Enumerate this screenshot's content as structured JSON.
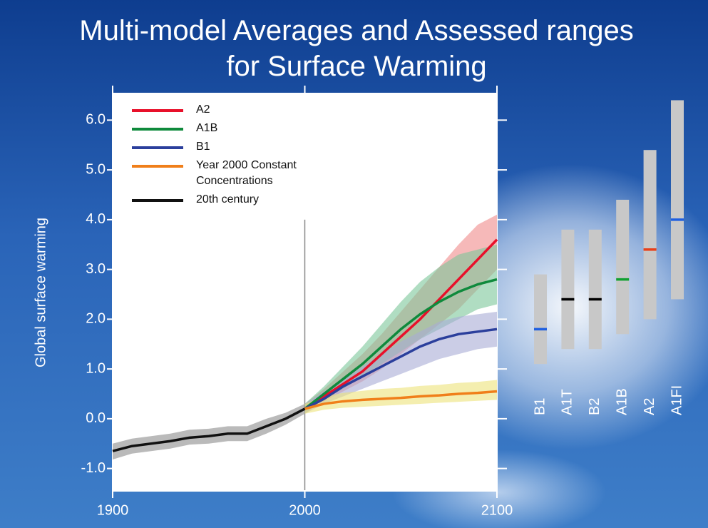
{
  "chart_data": {
    "type": "line",
    "title": "Multi-model Averages and Assessed ranges for Surface Warming",
    "y_label": "Global surface warming",
    "xlim": [
      1900,
      2100
    ],
    "xticks": [
      1900,
      2000,
      2100
    ],
    "ylim": [
      -1.45,
      6.55
    ],
    "yticks": [
      {
        "value": -1,
        "label": "-1.0"
      },
      {
        "value": 0,
        "label": "0.0"
      },
      {
        "value": 1,
        "label": "1.0"
      },
      {
        "value": 2,
        "label": "2.0"
      },
      {
        "value": 3,
        "label": "3.0"
      },
      {
        "value": 4,
        "label": "4.0"
      },
      {
        "value": 5,
        "label": "5.0"
      },
      {
        "value": 6,
        "label": "6.0"
      }
    ],
    "series": [
      {
        "name": "A2",
        "color": "#e8102a",
        "band_color": "#f08a8a",
        "x": [
          2000,
          2010,
          2020,
          2030,
          2040,
          2050,
          2060,
          2070,
          2080,
          2090,
          2100
        ],
        "values": [
          0.2,
          0.45,
          0.7,
          0.95,
          1.3,
          1.65,
          2.0,
          2.4,
          2.8,
          3.2,
          3.6
        ],
        "upper": [
          0.3,
          0.6,
          0.95,
          1.3,
          1.7,
          2.15,
          2.6,
          3.05,
          3.5,
          3.9,
          4.1
        ],
        "lower": [
          0.1,
          0.35,
          0.55,
          0.75,
          1.0,
          1.3,
          1.6,
          1.9,
          2.2,
          2.6,
          3.0
        ]
      },
      {
        "name": "A1B",
        "color": "#0f8a3c",
        "band_color": "#7cc79a",
        "x": [
          2000,
          2010,
          2020,
          2030,
          2040,
          2050,
          2060,
          2070,
          2080,
          2090,
          2100
        ],
        "values": [
          0.2,
          0.5,
          0.8,
          1.1,
          1.45,
          1.8,
          2.1,
          2.35,
          2.55,
          2.7,
          2.8
        ],
        "upper": [
          0.3,
          0.65,
          1.05,
          1.45,
          1.9,
          2.35,
          2.75,
          3.05,
          3.3,
          3.4,
          3.5
        ],
        "lower": [
          0.1,
          0.4,
          0.6,
          0.85,
          1.1,
          1.35,
          1.6,
          1.8,
          2.0,
          2.2,
          2.3
        ]
      },
      {
        "name": "B1",
        "color": "#2b3f9c",
        "band_color": "#a9acd6",
        "x": [
          2000,
          2010,
          2020,
          2030,
          2040,
          2050,
          2060,
          2070,
          2080,
          2090,
          2100
        ],
        "values": [
          0.2,
          0.4,
          0.65,
          0.85,
          1.05,
          1.25,
          1.45,
          1.6,
          1.7,
          1.75,
          1.8
        ],
        "upper": [
          0.3,
          0.55,
          0.8,
          1.05,
          1.3,
          1.55,
          1.75,
          1.95,
          2.05,
          2.1,
          2.15
        ],
        "lower": [
          0.1,
          0.3,
          0.45,
          0.6,
          0.75,
          0.9,
          1.05,
          1.2,
          1.3,
          1.4,
          1.45
        ]
      },
      {
        "name": "Year 2000 Constant Concentrations",
        "color": "#f07f1a",
        "band_color": "#ece27a",
        "x": [
          2000,
          2010,
          2020,
          2030,
          2040,
          2050,
          2060,
          2070,
          2080,
          2090,
          2100
        ],
        "values": [
          0.2,
          0.3,
          0.35,
          0.38,
          0.4,
          0.42,
          0.45,
          0.47,
          0.5,
          0.52,
          0.55
        ],
        "upper": [
          0.3,
          0.45,
          0.52,
          0.56,
          0.6,
          0.62,
          0.66,
          0.68,
          0.72,
          0.74,
          0.78
        ],
        "lower": [
          0.1,
          0.18,
          0.22,
          0.24,
          0.26,
          0.28,
          0.3,
          0.32,
          0.34,
          0.36,
          0.38
        ]
      },
      {
        "name": "20th century",
        "color": "#111111",
        "band_color": "#8c8c8c",
        "x": [
          1900,
          1910,
          1920,
          1930,
          1940,
          1950,
          1960,
          1970,
          1980,
          1990,
          2000
        ],
        "values": [
          -0.65,
          -0.55,
          -0.5,
          -0.45,
          -0.38,
          -0.35,
          -0.3,
          -0.3,
          -0.15,
          0.0,
          0.2
        ],
        "upper": [
          -0.5,
          -0.4,
          -0.35,
          -0.3,
          -0.22,
          -0.2,
          -0.15,
          -0.15,
          0.0,
          0.12,
          0.3
        ],
        "lower": [
          -0.82,
          -0.7,
          -0.65,
          -0.6,
          -0.52,
          -0.5,
          -0.45,
          -0.45,
          -0.3,
          -0.12,
          0.1
        ]
      }
    ],
    "ranges": {
      "categories": [
        "B1",
        "A1T",
        "B2",
        "A1B",
        "A2",
        "A1FI"
      ],
      "low": [
        1.1,
        1.4,
        1.4,
        1.7,
        2.0,
        2.4
      ],
      "high": [
        2.9,
        3.8,
        3.8,
        4.4,
        5.4,
        6.4
      ],
      "best": [
        1.8,
        2.4,
        2.4,
        2.8,
        3.4,
        4.0
      ],
      "bar_color": "#c8c8c8",
      "best_colors": [
        "#1f5fe0",
        "#000000",
        "#000000",
        "#11a030",
        "#e8401a",
        "#1f5fe0"
      ]
    }
  }
}
